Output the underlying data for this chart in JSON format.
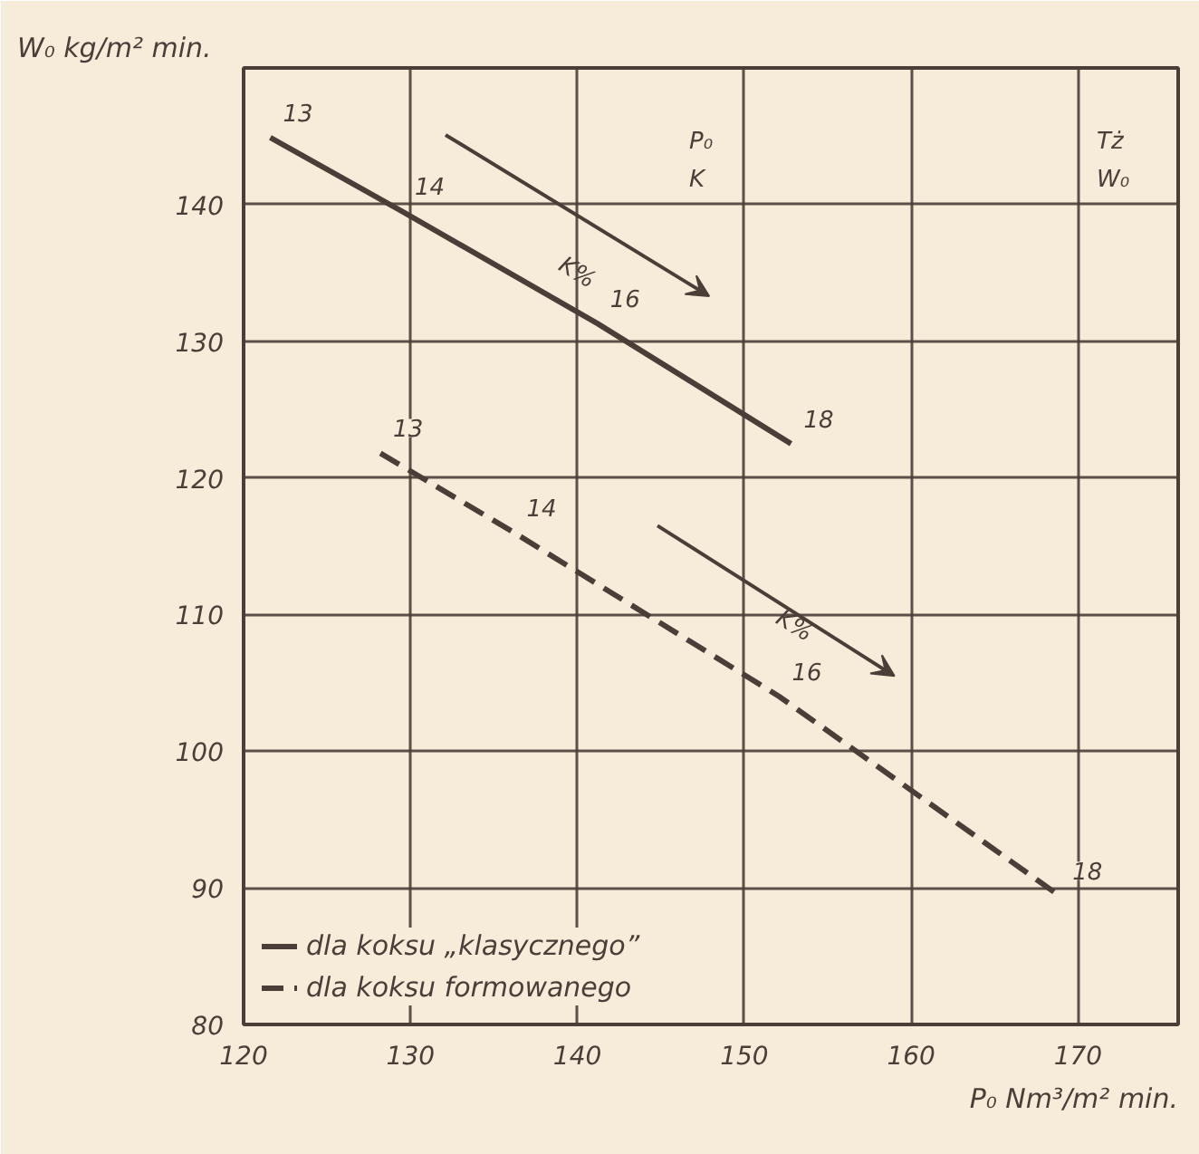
{
  "chart_data": {
    "type": "line",
    "xlabel": "P₀ Nm³/m² min.",
    "ylabel": "W₀ kg/m² min.",
    "series": [
      {
        "name": "dla koksu „klasycznego”",
        "color": "#4a3f38",
        "line_style": "solid",
        "x": [
          121.6,
          129.5,
          141.2,
          152.8
        ],
        "values": [
          144.9,
          139.5,
          131.3,
          122.5
        ]
      },
      {
        "name": "dla koksu formowanego",
        "color": "#4a3f38",
        "line_style": "dashed",
        "x": [
          128.2,
          136.2,
          152.1,
          168.9
        ],
        "values": [
          121.8,
          116.0,
          104.0,
          89.4
        ]
      }
    ],
    "xlim": [
      120,
      176
    ],
    "ylim": [
      80,
      150
    ],
    "xticks": [
      120,
      130,
      140,
      150,
      160,
      170
    ],
    "yticks": [
      80,
      90,
      100,
      110,
      120,
      130,
      140
    ],
    "grid": true,
    "legend": "bottom left",
    "marker": "none",
    "annotations": [
      {
        "text": "13",
        "x": 121.6,
        "y": 144.9
      },
      {
        "text": "14",
        "x": 129.5,
        "y": 139.5
      },
      {
        "text": "16",
        "x": 141.2,
        "y": 131.3
      },
      {
        "text": "18",
        "x": 152.8,
        "y": 122.5
      },
      {
        "text": "13",
        "x": 128.2,
        "y": 121.8
      },
      {
        "text": "14",
        "x": 136.2,
        "y": 116.0
      },
      {
        "text": "16",
        "x": 152.1,
        "y": 104.0
      },
      {
        "text": "18",
        "x": 168.9,
        "y": 89.4
      },
      "K%",
      "K%",
      "P₀",
      "K",
      "Tż",
      "W₀"
    ]
  }
}
